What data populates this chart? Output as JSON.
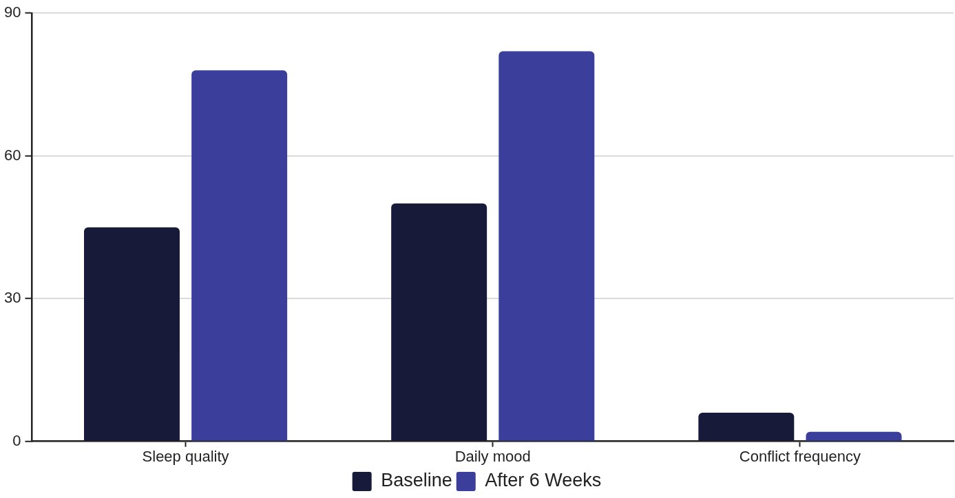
{
  "chart_data": {
    "type": "bar",
    "categories": [
      "Sleep quality",
      "Daily mood",
      "Conflict frequency"
    ],
    "series": [
      {
        "name": "Baseline",
        "color": "#181a3a",
        "values": [
          45,
          50,
          6
        ]
      },
      {
        "name": "After 6 Weeks",
        "color": "#3b3f9b",
        "values": [
          78,
          82,
          2
        ]
      }
    ],
    "ylim": [
      0,
      90
    ],
    "yticks": [
      0,
      30,
      60,
      90
    ],
    "grid": "y",
    "legend": "bottom"
  }
}
